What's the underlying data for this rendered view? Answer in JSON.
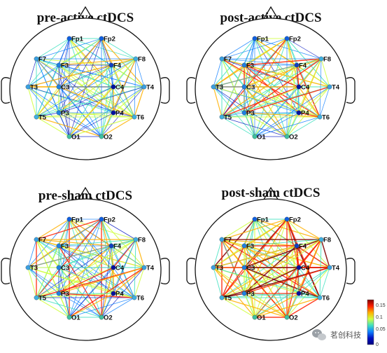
{
  "panels": [
    {
      "title": "pre-active ctDCS",
      "intensity": 0.35
    },
    {
      "title": "post-active ctDCS",
      "intensity": 0.55
    },
    {
      "title": "pre-sham ctDCS",
      "intensity": 0.5
    },
    {
      "title": "post-sham ctDCS",
      "intensity": 0.85
    }
  ],
  "electrodes": [
    "Fp1",
    "Fp2",
    "F7",
    "F3",
    "F4",
    "F8",
    "T3",
    "C3",
    "C4",
    "T4",
    "T5",
    "P3",
    "P4",
    "T6",
    "O1",
    "O2"
  ],
  "colorbar": {
    "ticks": [
      "0.15",
      "0.1",
      "0.05",
      "0"
    ],
    "colors": [
      "#800000",
      "#ff2000",
      "#ffb000",
      "#d0ff40",
      "#40e0c0",
      "#1080ff",
      "#0010c0",
      "#000080"
    ]
  },
  "watermark": {
    "text": "茗创科技",
    "icon": "wechat-icon"
  }
}
